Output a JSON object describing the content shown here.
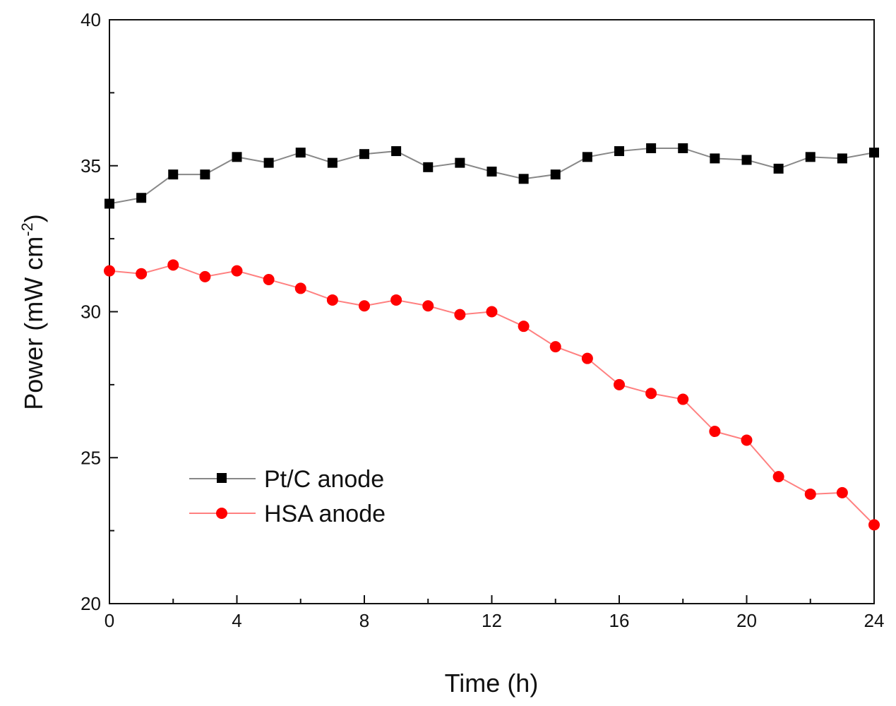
{
  "chart_data": {
    "type": "line",
    "title": "",
    "xlabel": "Time (h)",
    "ylabel": "Power (mW cm",
    "ylabel_sup": "-2",
    "ylabel_close": ")",
    "xlim": [
      0,
      24
    ],
    "ylim": [
      20,
      40
    ],
    "xticks": [
      0,
      4,
      8,
      12,
      16,
      20,
      24
    ],
    "yticks": [
      20,
      25,
      30,
      35,
      40
    ],
    "grid": false,
    "legend_position": "lower-left",
    "x": [
      0,
      1,
      2,
      3,
      4,
      5,
      6,
      7,
      8,
      9,
      10,
      11,
      12,
      13,
      14,
      15,
      16,
      17,
      18,
      19,
      20,
      21,
      22,
      23,
      24
    ],
    "series": [
      {
        "name": "Pt/C anode",
        "color": "#000000",
        "line_color": "#888888",
        "marker": "square",
        "values": [
          33.7,
          33.9,
          34.7,
          34.7,
          35.3,
          35.1,
          35.45,
          35.1,
          35.4,
          35.5,
          34.95,
          35.1,
          34.8,
          34.55,
          34.7,
          35.3,
          35.5,
          35.6,
          35.6,
          35.25,
          35.2,
          34.9,
          35.3,
          35.25,
          35.45
        ]
      },
      {
        "name": "HSA anode",
        "color": "#ff0000",
        "line_color": "#ff8080",
        "marker": "circle",
        "values": [
          31.4,
          31.3,
          31.6,
          31.2,
          31.4,
          31.1,
          30.8,
          30.4,
          30.2,
          30.4,
          30.2,
          29.9,
          30.0,
          29.5,
          28.8,
          28.4,
          27.5,
          27.2,
          27.0,
          25.9,
          25.6,
          24.35,
          23.75,
          23.8,
          22.7
        ]
      }
    ]
  }
}
